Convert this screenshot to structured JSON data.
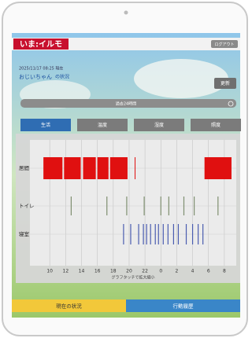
{
  "header": {
    "title": "いま:イルモ",
    "logout": "ログアウト"
  },
  "status": {
    "timestamp": "2025/11/17 08:25 現在",
    "subject": "おじいちゃん",
    "subject_suffix": "の状況",
    "refresh": "更新"
  },
  "period_select": "過去24時間",
  "tabs": [
    "生活",
    "温度",
    "湿度",
    "照度"
  ],
  "chart": {
    "xlim": [
      7.5,
      33.5
    ],
    "xticks": [
      10,
      12,
      14,
      16,
      18,
      20,
      22,
      {
        "value": 24,
        "label": "0"
      },
      {
        "value": 26,
        "label": "2"
      },
      {
        "value": 28,
        "label": "4"
      },
      {
        "value": 30,
        "label": "6"
      },
      {
        "value": 32,
        "label": "8"
      }
    ],
    "rows": [
      {
        "name": "居間",
        "color": "#e01010",
        "intervals": [
          [
            9.2,
            11.6
          ],
          [
            11.8,
            13.9
          ],
          [
            14.2,
            15.8
          ],
          [
            16.0,
            17.4
          ],
          [
            17.6,
            19.8
          ],
          [
            20.7,
            20.8
          ],
          [
            29.5,
            32.9
          ]
        ]
      },
      {
        "name": "トイレ",
        "color": "#7f8f70",
        "events": [
          12.7,
          17.2,
          19.7,
          21.9,
          24.0,
          25.0,
          26.9,
          28.2,
          31.2
        ]
      },
      {
        "name": "寝室",
        "color": "#4a5cb0",
        "events": [
          19.3,
          20.2,
          21.2,
          21.8,
          22.2,
          22.7,
          23.3,
          23.7,
          24.3,
          24.9,
          25.6,
          26.2,
          27.2,
          28.0,
          28.7,
          29.3
        ]
      }
    ],
    "caption": "グラフタッチで拡大縮小"
  },
  "bottom_tabs": [
    "現在の状況",
    "行動履歴"
  ]
}
